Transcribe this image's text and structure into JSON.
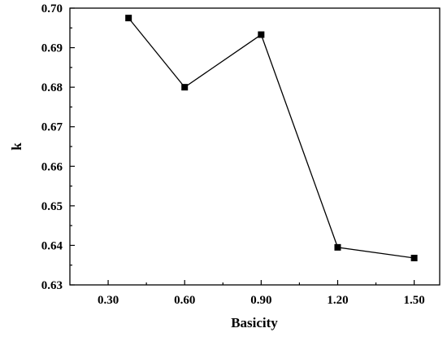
{
  "chart_data": {
    "type": "line",
    "xlabel": "Basicity",
    "ylabel": "k",
    "xlim": [
      0.15,
      1.6
    ],
    "ylim": [
      0.63,
      0.7
    ],
    "xticks": [
      0.3,
      0.6,
      0.9,
      1.2,
      1.5
    ],
    "xtick_labels": [
      "0.30",
      "0.60",
      "0.90",
      "1.20",
      "1.50"
    ],
    "yticks": [
      0.63,
      0.64,
      0.65,
      0.66,
      0.67,
      0.68,
      0.69,
      0.7
    ],
    "ytick_labels": [
      "0.63",
      "0.64",
      "0.65",
      "0.66",
      "0.67",
      "0.68",
      "0.69",
      "0.70"
    ],
    "grid": false,
    "series": [
      {
        "marker": "square",
        "color": "#000000",
        "x": [
          0.38,
          0.6,
          0.9,
          1.2,
          1.5
        ],
        "y": [
          0.6975,
          0.68,
          0.6933,
          0.6395,
          0.6368
        ]
      }
    ]
  }
}
